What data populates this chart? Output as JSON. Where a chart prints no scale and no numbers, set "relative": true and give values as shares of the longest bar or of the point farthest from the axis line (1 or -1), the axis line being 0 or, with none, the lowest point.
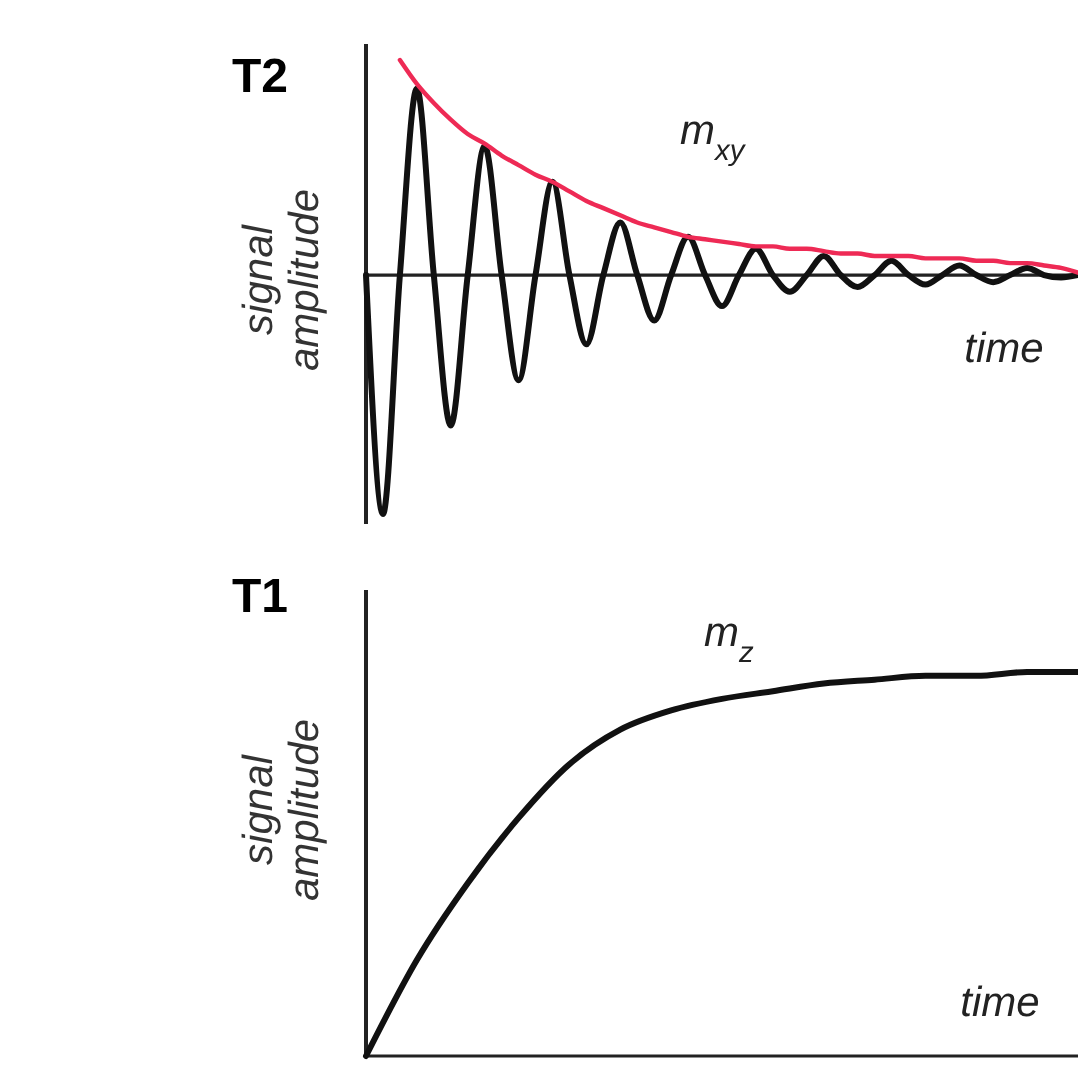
{
  "chart_data": [
    {
      "type": "line",
      "title": "T2",
      "xlabel": "time",
      "ylabel": "signal amplitude",
      "relative": true,
      "categories": [
        null,
        null,
        null,
        null,
        null,
        null,
        null,
        null,
        null,
        null,
        null,
        null,
        null,
        null,
        null,
        null,
        null,
        null,
        null,
        null,
        null,
        null,
        null,
        null,
        null,
        null,
        null,
        null,
        null,
        null,
        null,
        null,
        null,
        null,
        null,
        null,
        null,
        null,
        null,
        null,
        null,
        null,
        null
      ],
      "series": [
        {
          "color": "#111111",
          "values": [
            0,
            -1,
            0,
            0.78,
            0,
            -0.63,
            0,
            0.54,
            0,
            -0.44,
            0,
            0.39,
            0,
            -0.29,
            0,
            0.22,
            0,
            -0.19,
            0,
            0.16,
            0,
            -0.13,
            0,
            0.11,
            0,
            -0.07,
            0,
            0.08,
            0,
            -0.05,
            0,
            0.06,
            0,
            -0.04,
            0,
            0.04,
            0,
            -0.03,
            0,
            0.03,
            0,
            -0.01,
            0
          ]
        },
        {
          "name": "m$_{xy}$",
          "color": "#ee2a55",
          "values": [
            null,
            null,
            0.9,
            0.8,
            0.72,
            0.65,
            0.59,
            0.55,
            0.5,
            0.46,
            0.42,
            0.39,
            0.35,
            0.31,
            0.28,
            0.25,
            0.22,
            0.2,
            0.18,
            0.16,
            0.15,
            0.14,
            0.13,
            0.12,
            0.12,
            0.11,
            0.11,
            0.1,
            0.09,
            0.09,
            0.08,
            0.08,
            0.08,
            0.07,
            0.07,
            0.07,
            0.06,
            0.06,
            0.05,
            0.05,
            0.04,
            0.03,
            0.01
          ]
        }
      ]
    },
    {
      "type": "line",
      "title": "T1",
      "xlabel": "time",
      "ylabel": "signal amplitude",
      "relative": true,
      "categories": [
        null,
        null,
        null,
        null,
        null,
        null,
        null,
        null,
        null,
        null,
        null,
        null,
        null,
        null,
        null
      ],
      "series": [
        {
          "name": "m$_{z}$",
          "color": "#111111",
          "values": [
            0,
            0.25,
            0.45,
            0.62,
            0.76,
            0.85,
            0.9,
            0.93,
            0.95,
            0.97,
            0.98,
            0.99,
            0.99,
            1,
            1
          ]
        }
      ]
    }
  ]
}
